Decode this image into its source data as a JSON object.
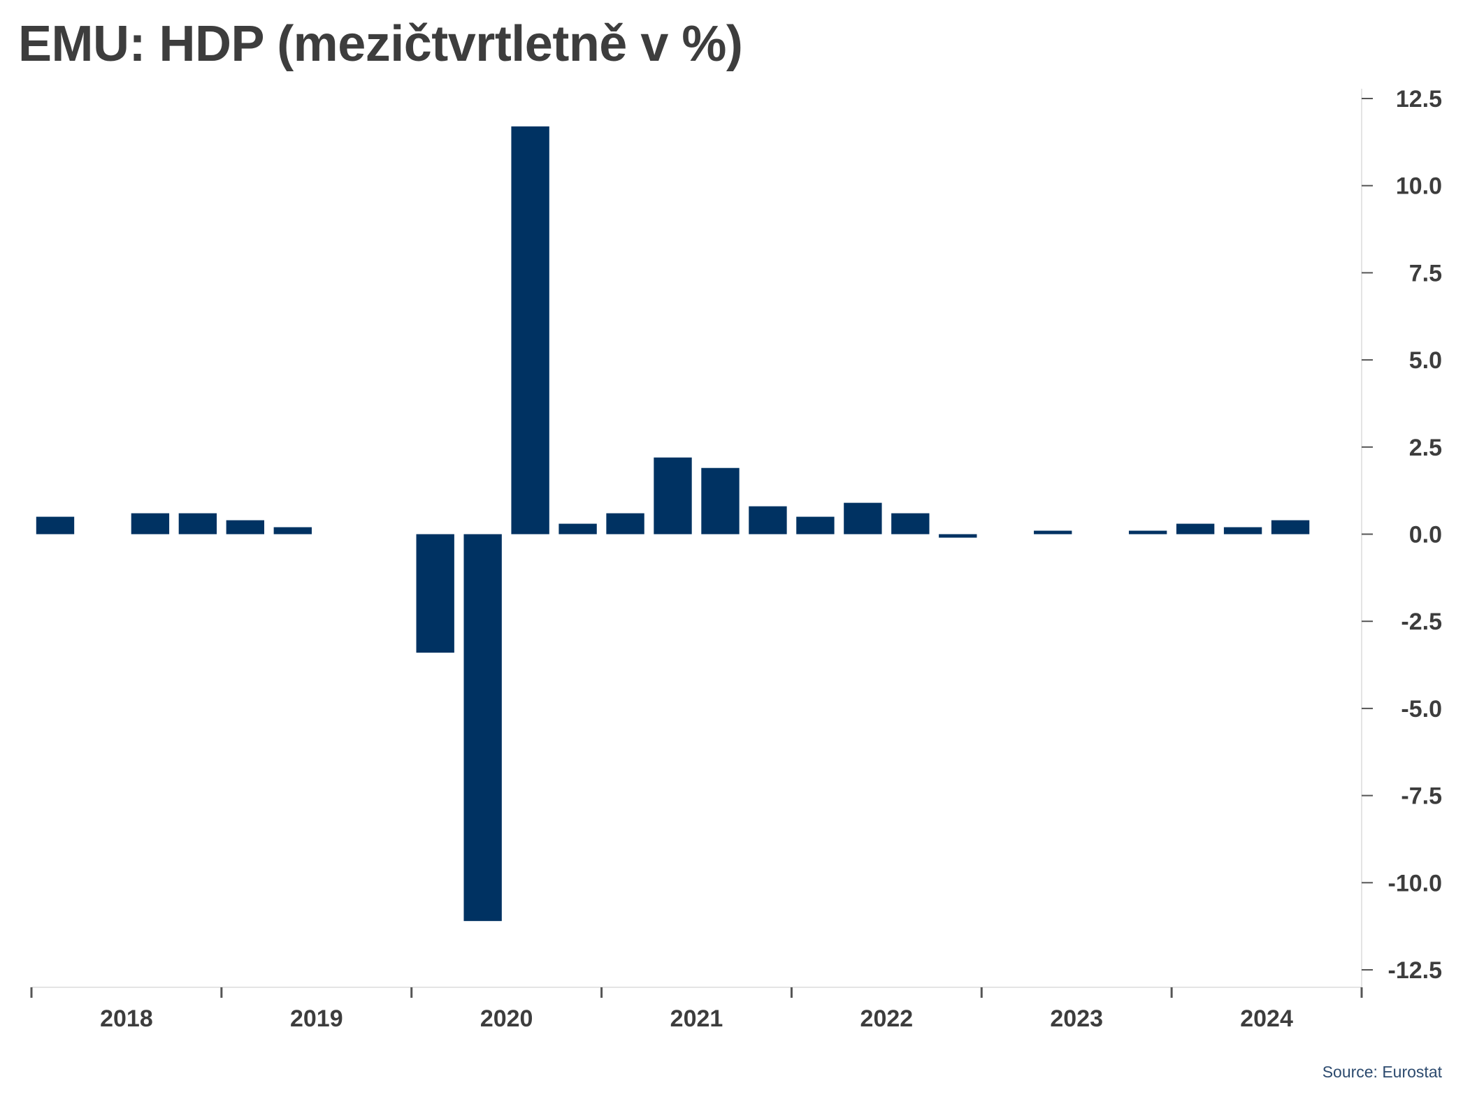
{
  "title": "EMU: HDP (mezičtvrtletně v %)",
  "source": "Source: Eurostat",
  "colors": {
    "bar": "#003262",
    "text": "#3d3d3d",
    "axis": "#555555",
    "source": "#2c4a6e"
  },
  "chart_data": {
    "type": "bar",
    "title": "EMU: HDP (mezičtvrtletně v %)",
    "xlabel": "",
    "ylabel": "",
    "ylim": [
      -12.5,
      12.5
    ],
    "yticks": [
      "12.5",
      "10.0",
      "7.5",
      "5.0",
      "2.5",
      "0.0",
      "-2.5",
      "-5.0",
      "-7.5",
      "-10.0",
      "-12.5"
    ],
    "yaxis_position": "right",
    "grid": false,
    "legend": "none",
    "year_labels": [
      "2018",
      "2019",
      "2020",
      "2021",
      "2022",
      "2023",
      "2024"
    ],
    "categories": [
      "2018 Q1",
      "2018 Q2",
      "2018 Q3",
      "2018 Q4",
      "2019 Q1",
      "2019 Q2",
      "2019 Q3",
      "2019 Q4",
      "2020 Q1",
      "2020 Q2",
      "2020 Q3",
      "2020 Q4",
      "2021 Q1",
      "2021 Q2",
      "2021 Q3",
      "2021 Q4",
      "2022 Q1",
      "2022 Q2",
      "2022 Q3",
      "2022 Q4",
      "2023 Q1",
      "2023 Q2",
      "2023 Q3",
      "2023 Q4",
      "2024 Q1",
      "2024 Q2",
      "2024 Q3",
      "2024 Q4"
    ],
    "values": [
      0.5,
      0.0,
      0.6,
      0.6,
      0.4,
      0.2,
      0.0,
      0.0,
      -3.4,
      -11.1,
      11.7,
      0.3,
      0.6,
      2.2,
      1.9,
      0.8,
      0.5,
      0.9,
      0.6,
      -0.1,
      0.0,
      0.1,
      0.0,
      0.1,
      0.3,
      0.2,
      0.4,
      0.0
    ]
  }
}
